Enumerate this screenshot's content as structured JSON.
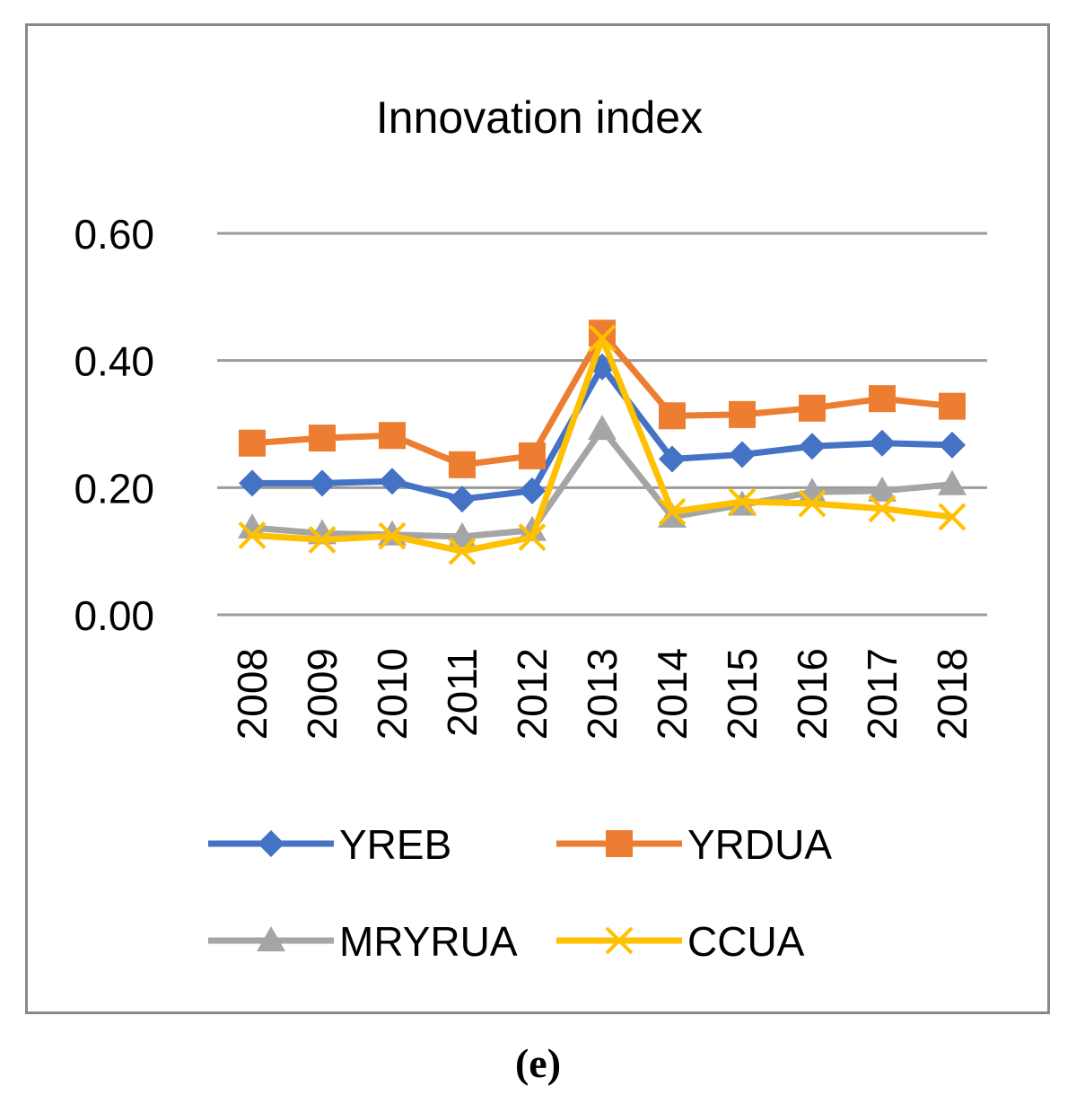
{
  "chart_data": {
    "type": "line",
    "title": "Innovation index",
    "xlabel": "",
    "ylabel": "",
    "ylim": [
      0,
      0.6
    ],
    "yticks": [
      "0.00",
      "0.20",
      "0.40",
      "0.60"
    ],
    "categories": [
      "2008",
      "2009",
      "2010",
      "2011",
      "2012",
      "2013",
      "2014",
      "2015",
      "2016",
      "2017",
      "2018"
    ],
    "grid": true,
    "legend_position": "bottom",
    "series": [
      {
        "name": "YREB",
        "color": "#4472C4",
        "marker": "diamond",
        "values": [
          0.207,
          0.207,
          0.21,
          0.182,
          0.195,
          0.39,
          0.245,
          0.252,
          0.265,
          0.27,
          0.267
        ]
      },
      {
        "name": "YRDUA",
        "color": "#ED7D31",
        "marker": "square",
        "values": [
          0.27,
          0.278,
          0.282,
          0.236,
          0.25,
          0.443,
          0.313,
          0.315,
          0.325,
          0.34,
          0.328
        ]
      },
      {
        "name": "MRYRUA",
        "color": "#A5A5A5",
        "marker": "triangle",
        "values": [
          0.137,
          0.128,
          0.126,
          0.123,
          0.133,
          0.292,
          0.154,
          0.173,
          0.193,
          0.195,
          0.205
        ]
      },
      {
        "name": "CCUA",
        "color": "#FFC000",
        "marker": "x",
        "values": [
          0.125,
          0.118,
          0.124,
          0.1,
          0.122,
          0.435,
          0.162,
          0.178,
          0.175,
          0.167,
          0.154
        ]
      }
    ]
  },
  "panel_label": "(e)"
}
